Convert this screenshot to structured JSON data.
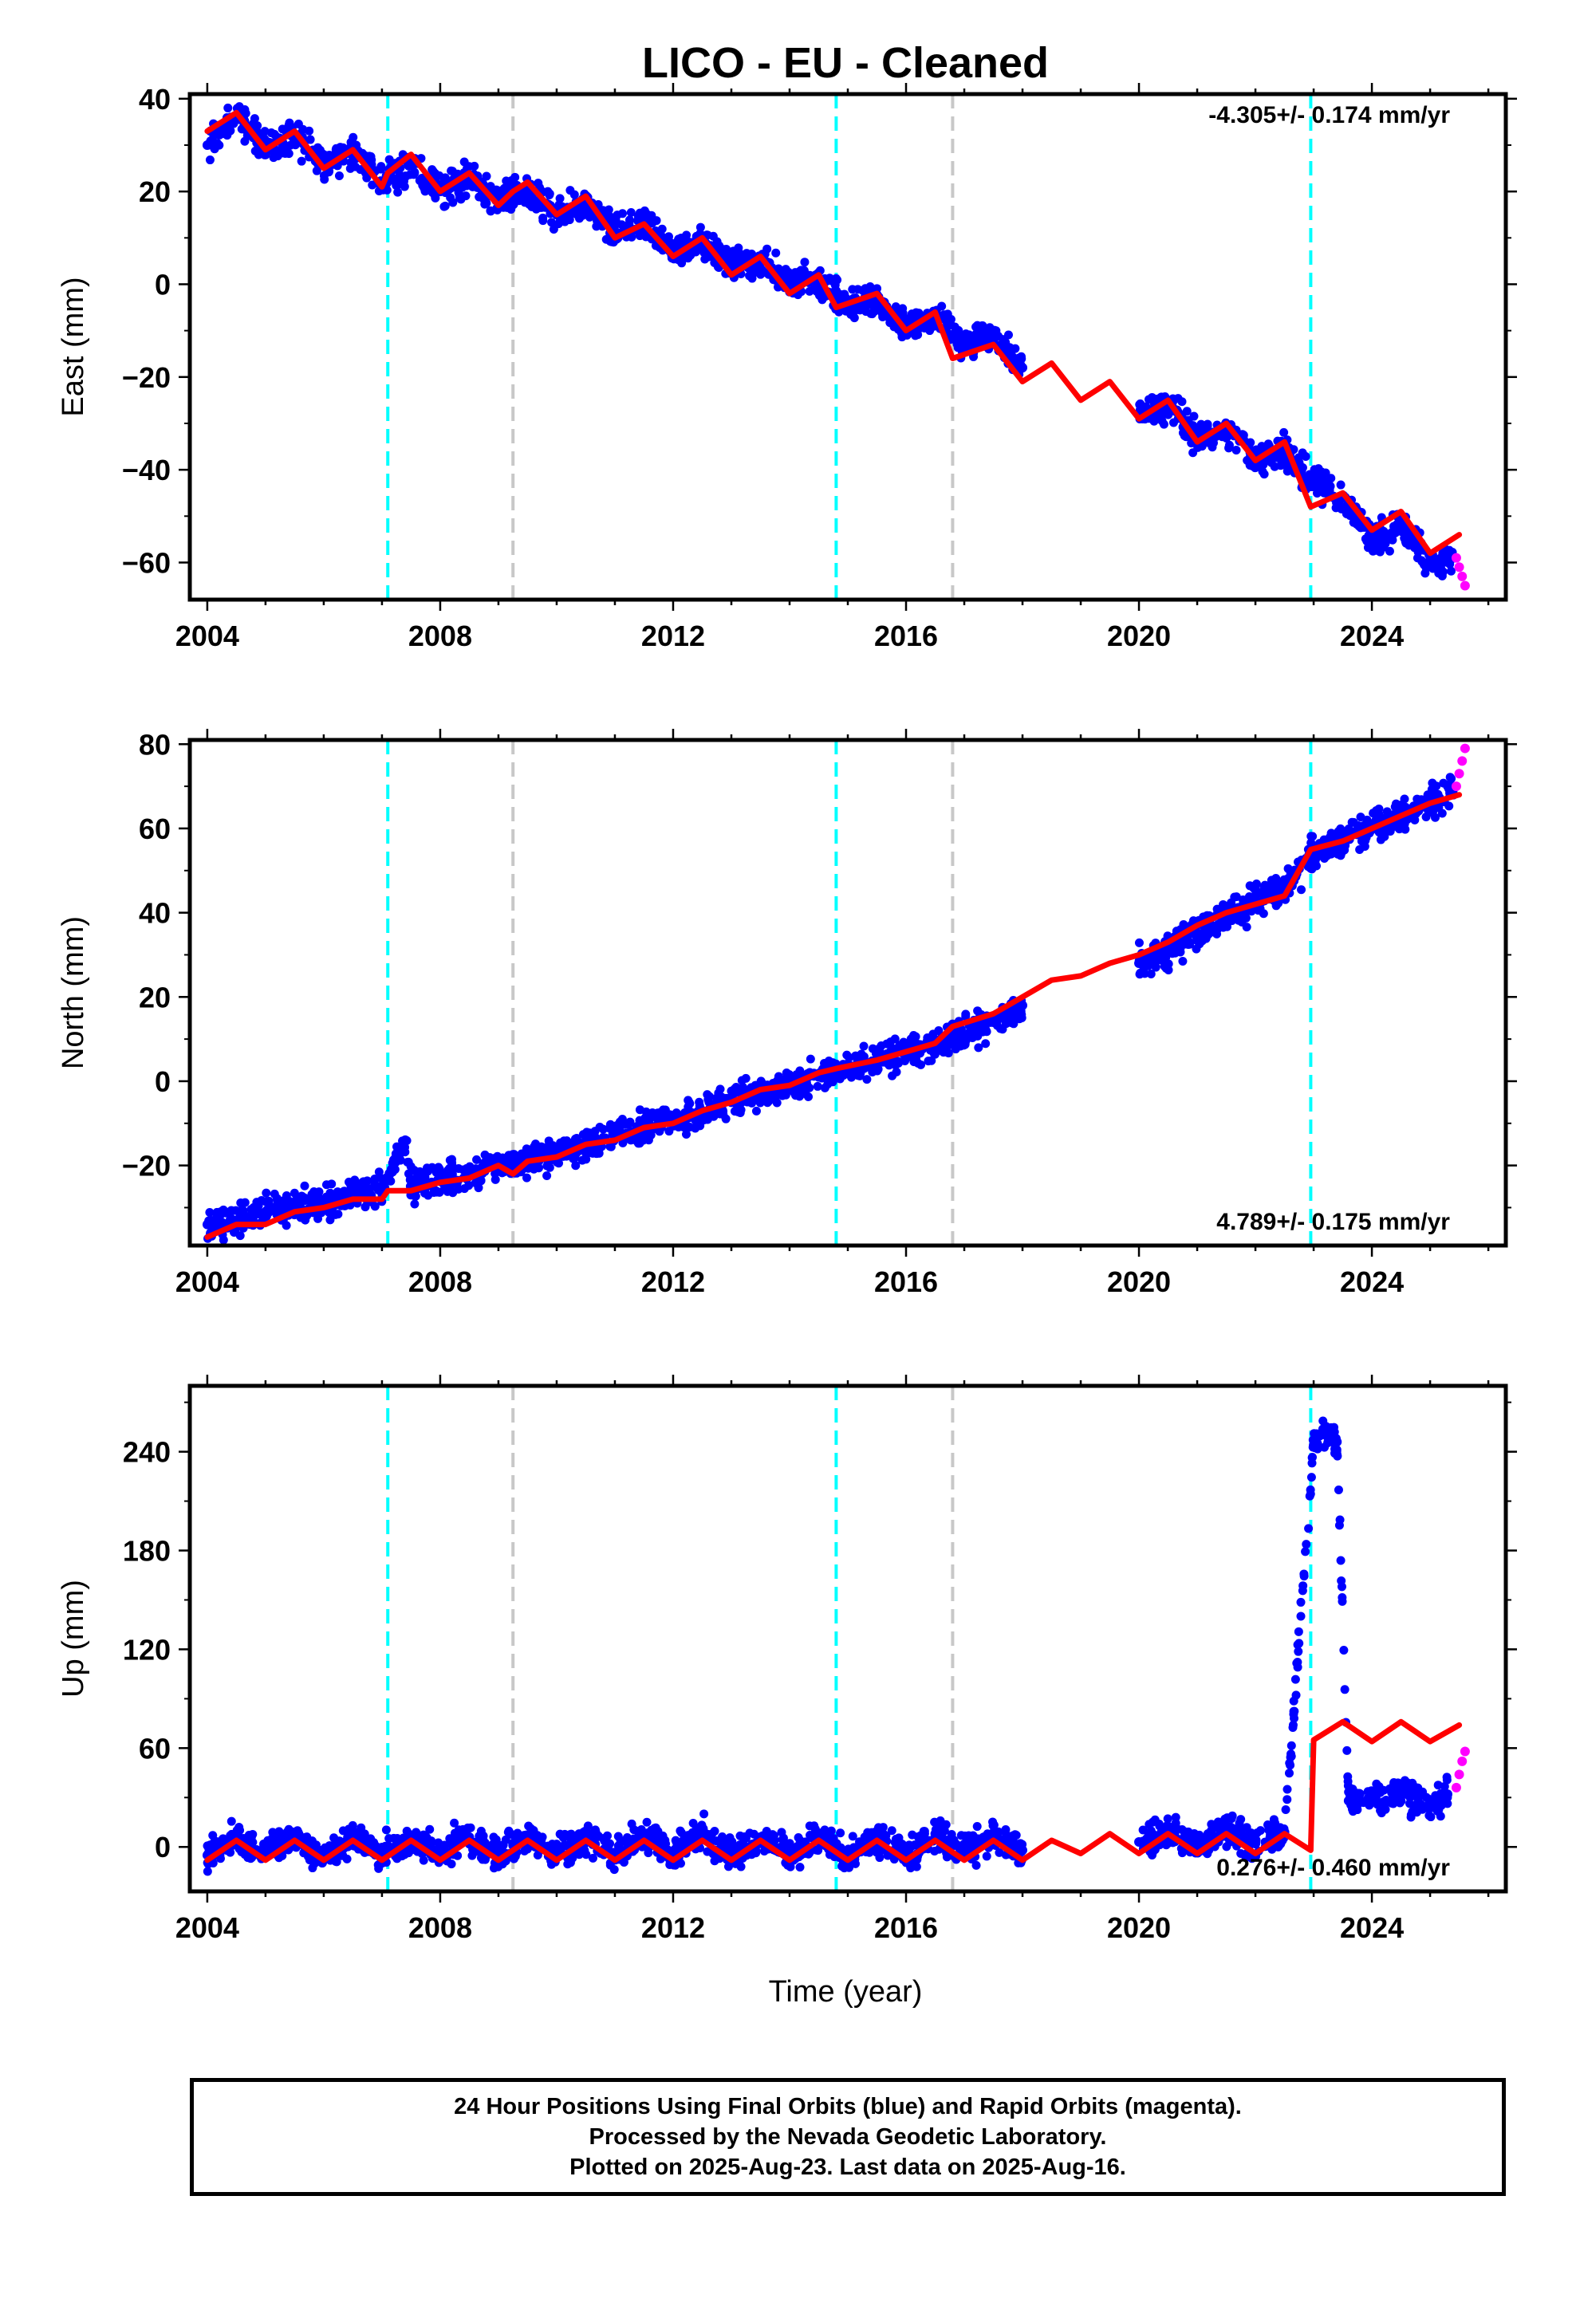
{
  "chart_data": {
    "title": "LICO  - EU - Cleaned",
    "xlabel": "Time (year)",
    "xlim": [
      2003.7,
      2026.3
    ],
    "xticks": [
      2004,
      2008,
      2012,
      2016,
      2020,
      2024
    ],
    "colors": {
      "final_orbits": "#0000ff",
      "rapid_orbits": "#ff00ff",
      "model": "#ff0000",
      "equipment_change": "#00ffff",
      "other_event": "#c8c8c8"
    },
    "event_lines": [
      {
        "x": 2007.1,
        "color": "cyan"
      },
      {
        "x": 2009.25,
        "color": "gray"
      },
      {
        "x": 2014.8,
        "color": "cyan"
      },
      {
        "x": 2016.8,
        "color": "gray"
      },
      {
        "x": 2022.95,
        "color": "cyan"
      }
    ],
    "panels": [
      {
        "type": "scatter",
        "ylabel": "East (mm)",
        "ylim": [
          -68,
          41
        ],
        "yticks": [
          40,
          20,
          0,
          -20,
          -40,
          -60
        ],
        "rate_text": "-4.305+/- 0.174 mm/yr",
        "rate_position": "top-right",
        "series": [
          {
            "name": "Final Orbits",
            "type": "scatter",
            "color": "blue",
            "x": [
              2004.0,
              2004.5,
              2005.0,
              2005.5,
              2006.0,
              2006.5,
              2007.0,
              2007.5,
              2008.0,
              2008.5,
              2009.0,
              2009.5,
              2010.0,
              2010.5,
              2011.0,
              2011.5,
              2012.0,
              2012.5,
              2013.0,
              2013.5,
              2014.0,
              2014.5,
              2015.0,
              2015.5,
              2016.0,
              2016.5,
              2017.0,
              2017.5,
              2018.0,
              2020.0,
              2020.5,
              2021.0,
              2021.5,
              2022.0,
              2022.5,
              2023.0,
              2023.5,
              2024.0,
              2024.5,
              2025.0,
              2025.4
            ],
            "y": [
              30,
              36,
              30,
              32,
              26,
              29,
              22,
              26,
              20,
              23,
              18,
              20,
              15,
              17,
              11,
              13,
              7,
              9,
              4,
              5,
              0,
              1,
              -5,
              -3,
              -9,
              -7,
              -13,
              -11,
              -18,
              -28,
              -26,
              -33,
              -31,
              -38,
              -36,
              -43,
              -46,
              -55,
              -52,
              -60,
              -59
            ]
          },
          {
            "name": "Rapid Orbits",
            "type": "scatter",
            "color": "magenta",
            "x": [
              2025.45,
              2025.5,
              2025.55,
              2025.6
            ],
            "y": [
              -59,
              -61,
              -63,
              -65
            ]
          },
          {
            "name": "Model",
            "type": "line",
            "color": "red",
            "x": [
              2004.0,
              2004.5,
              2005.0,
              2005.5,
              2006.0,
              2006.5,
              2007.0,
              2007.1,
              2007.5,
              2008.0,
              2008.5,
              2009.0,
              2009.25,
              2009.5,
              2010.0,
              2010.5,
              2011.0,
              2011.5,
              2012.0,
              2012.5,
              2013.0,
              2013.5,
              2014.0,
              2014.5,
              2014.8,
              2015.5,
              2016.0,
              2016.5,
              2016.8,
              2017.5,
              2018.0,
              2018.5,
              2019.0,
              2019.5,
              2020.0,
              2020.5,
              2021.0,
              2021.5,
              2022.0,
              2022.5,
              2022.95,
              2023.5,
              2024.0,
              2024.5,
              2025.0,
              2025.5
            ],
            "y": [
              33,
              37,
              29,
              33,
              25,
              29,
              21,
              24,
              28,
              20,
              24,
              17,
              20,
              22,
              15,
              19,
              10,
              13,
              6,
              10,
              2,
              6,
              -2,
              2,
              -5,
              -2,
              -10,
              -6,
              -16,
              -13,
              -21,
              -17,
              -25,
              -21,
              -29,
              -25,
              -34,
              -30,
              -38,
              -34,
              -48,
              -45,
              -53,
              -49,
              -58,
              -54
            ]
          }
        ]
      },
      {
        "type": "scatter",
        "ylabel": "North (mm)",
        "ylim": [
          -39,
          81
        ],
        "yticks": [
          80,
          60,
          40,
          20,
          0,
          -20
        ],
        "rate_text": "4.789+/- 0.175 mm/yr",
        "rate_position": "bottom-right",
        "series": [
          {
            "name": "Final Orbits",
            "type": "scatter",
            "color": "blue",
            "x": [
              2004.0,
              2004.5,
              2005.0,
              2005.5,
              2006.0,
              2006.5,
              2007.0,
              2007.4,
              2007.5,
              2008.0,
              2008.5,
              2009.0,
              2009.5,
              2010.0,
              2010.5,
              2011.0,
              2011.5,
              2012.0,
              2012.5,
              2013.0,
              2013.5,
              2014.0,
              2014.5,
              2015.0,
              2015.5,
              2016.0,
              2016.5,
              2017.0,
              2017.5,
              2018.0,
              2020.0,
              2020.5,
              2021.0,
              2021.5,
              2022.0,
              2022.5,
              2023.0,
              2023.5,
              2024.0,
              2024.5,
              2025.0,
              2025.4
            ],
            "y": [
              -34,
              -33,
              -31,
              -30,
              -29,
              -27,
              -26,
              -14,
              -25,
              -23,
              -22,
              -20,
              -19,
              -17,
              -15,
              -13,
              -11,
              -9,
              -7,
              -5,
              -3,
              -1,
              1,
              3,
              5,
              7,
              9,
              11,
              14,
              18,
              28,
              31,
              35,
              39,
              43,
              46,
              54,
              57,
              60,
              63,
              66,
              68
            ]
          },
          {
            "name": "Rapid Orbits",
            "type": "scatter",
            "color": "magenta",
            "x": [
              2025.45,
              2025.5,
              2025.55,
              2025.6
            ],
            "y": [
              70,
              73,
              76,
              79
            ]
          },
          {
            "name": "Model",
            "type": "line",
            "color": "red",
            "x": [
              2004.0,
              2004.5,
              2005.0,
              2005.5,
              2006.0,
              2006.5,
              2007.0,
              2007.1,
              2007.5,
              2008.0,
              2008.5,
              2009.0,
              2009.25,
              2009.5,
              2010.0,
              2010.5,
              2011.0,
              2011.5,
              2012.0,
              2012.5,
              2013.0,
              2013.5,
              2014.0,
              2014.5,
              2014.8,
              2015.5,
              2016.0,
              2016.5,
              2016.8,
              2017.5,
              2018.0,
              2018.5,
              2019.0,
              2019.5,
              2020.0,
              2020.5,
              2021.0,
              2021.5,
              2022.0,
              2022.5,
              2022.95,
              2023.5,
              2024.0,
              2024.5,
              2025.0,
              2025.5
            ],
            "y": [
              -37,
              -34,
              -34,
              -31,
              -30,
              -28,
              -28,
              -26,
              -26,
              -24,
              -23,
              -20,
              -22,
              -19,
              -18,
              -15,
              -14,
              -11,
              -10,
              -7,
              -5,
              -2,
              -1,
              2,
              3,
              5,
              7,
              9,
              13,
              16,
              20,
              24,
              25,
              28,
              30,
              33,
              37,
              40,
              42,
              44,
              55,
              57,
              60,
              63,
              66,
              68
            ]
          }
        ]
      },
      {
        "type": "scatter",
        "ylabel": "Up (mm)",
        "ylim": [
          -27,
          280
        ],
        "yticks": [
          240,
          180,
          120,
          60,
          0
        ],
        "rate_text": "0.276+/- 0.460 mm/yr",
        "rate_position": "bottom-right",
        "series": [
          {
            "name": "Final Orbits",
            "type": "scatter",
            "color": "blue",
            "x": [
              2004.0,
              2004.5,
              2005.0,
              2005.5,
              2006.0,
              2006.5,
              2007.0,
              2007.5,
              2008.0,
              2008.5,
              2009.0,
              2009.5,
              2010.0,
              2010.5,
              2011.0,
              2011.5,
              2012.0,
              2012.5,
              2013.0,
              2013.5,
              2014.0,
              2014.5,
              2015.0,
              2015.5,
              2016.0,
              2016.5,
              2017.0,
              2017.5,
              2018.0,
              2020.0,
              2020.5,
              2021.0,
              2021.5,
              2022.0,
              2022.5,
              2023.0,
              2023.2,
              2023.4,
              2023.6,
              2024.0,
              2024.5,
              2025.0,
              2025.3
            ],
            "y": [
              -5,
              6,
              -4,
              7,
              -6,
              5,
              -5,
              6,
              -4,
              6,
              -5,
              7,
              -3,
              6,
              -4,
              7,
              -3,
              8,
              -4,
              6,
              -5,
              7,
              -8,
              5,
              -6,
              6,
              -3,
              8,
              -2,
              3,
              9,
              0,
              10,
              2,
              9,
              244,
              252,
              246,
              28,
              30,
              34,
              26,
              32
            ]
          },
          {
            "name": "Rapid Orbits",
            "type": "scatter",
            "color": "magenta",
            "x": [
              2025.45,
              2025.5,
              2025.55,
              2025.6
            ],
            "y": [
              36,
              44,
              52,
              58
            ]
          },
          {
            "name": "Model",
            "type": "line",
            "color": "red",
            "x": [
              2004.0,
              2004.5,
              2005.0,
              2005.5,
              2006.0,
              2006.5,
              2007.0,
              2007.5,
              2008.0,
              2008.5,
              2009.0,
              2009.5,
              2010.0,
              2010.5,
              2011.0,
              2011.5,
              2012.0,
              2012.5,
              2013.0,
              2013.5,
              2014.0,
              2014.5,
              2015.0,
              2015.5,
              2016.0,
              2016.5,
              2017.0,
              2017.5,
              2018.0,
              2018.5,
              2019.0,
              2019.5,
              2020.0,
              2020.5,
              2021.0,
              2021.5,
              2022.0,
              2022.5,
              2022.95,
              2023.0,
              2023.5,
              2024.0,
              2024.5,
              2025.0,
              2025.5
            ],
            "y": [
              -8,
              4,
              -8,
              4,
              -8,
              4,
              -8,
              4,
              -8,
              4,
              -8,
              4,
              -8,
              4,
              -8,
              4,
              -8,
              4,
              -8,
              4,
              -8,
              4,
              -8,
              4,
              -8,
              4,
              -8,
              4,
              -8,
              4,
              -4,
              8,
              -4,
              8,
              -4,
              8,
              -4,
              8,
              -2,
              65,
              76,
              64,
              76,
              64,
              74
            ]
          }
        ]
      }
    ]
  },
  "caption": {
    "line1": "24 Hour Positions Using Final Orbits (blue) and Rapid Orbits (magenta).",
    "line2": "Processed by the Nevada Geodetic Laboratory.",
    "line3": "Plotted on 2025-Aug-23. Last data on 2025-Aug-16."
  }
}
